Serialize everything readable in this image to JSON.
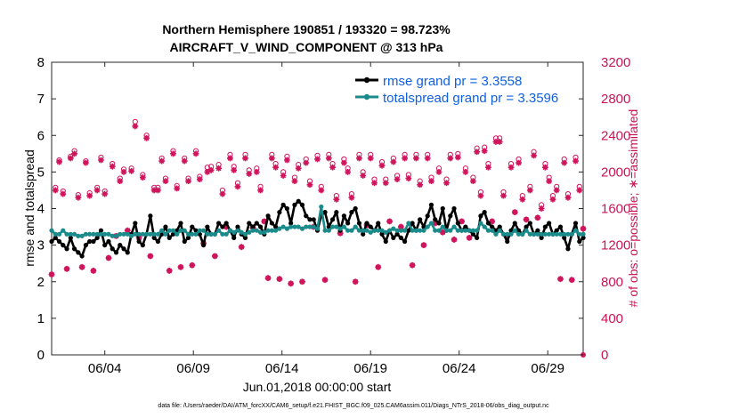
{
  "chart_data": {
    "type": "line",
    "title_line1": "Northern Hemisphere 190851 / 193320 = 98.723%",
    "title_line2": "AIRCRAFT_V_WIND_COMPONENT @ 313 hPa",
    "xlabel": "Jun.01,2018 00:00:00 start",
    "ylabel_left": "rmse and totalspread",
    "ylabel_right": "# of obs: o=possible; ∗=assimilated",
    "x_range": [
      1,
      31
    ],
    "x_ticks": [
      4,
      9,
      14,
      19,
      24,
      29
    ],
    "x_tick_labels": [
      "06/04",
      "06/09",
      "06/14",
      "06/19",
      "06/24",
      "06/29"
    ],
    "y_left_range": [
      0,
      8
    ],
    "y_left_ticks": [
      "0",
      "1",
      "2",
      "3",
      "4",
      "5",
      "6",
      "7",
      "8"
    ],
    "y_right_range": [
      0,
      3200
    ],
    "y_right_ticks": [
      "0",
      "400",
      "800",
      "1200",
      "1600",
      "2000",
      "2400",
      "2800",
      "3200"
    ],
    "grid": false,
    "legend_position": "top-right",
    "series": [
      {
        "name": "rmse grand pr = 3.3558",
        "color": "#000000",
        "axis": "left",
        "values": [
          3.1,
          3.2,
          3.1,
          3.0,
          2.9,
          3.2,
          2.9,
          2.8,
          2.7,
          3.0,
          3.1,
          3.1,
          3.2,
          3.4,
          3.0,
          3.1,
          2.9,
          2.8,
          3.0,
          2.9,
          2.8,
          3.3,
          3.6,
          3.1,
          3.0,
          3.3,
          3.8,
          3.2,
          3.1,
          3.3,
          3.5,
          3.2,
          3.3,
          3.4,
          3.6,
          3.1,
          3.2,
          3.5,
          3.4,
          3.3,
          3.0,
          3.5,
          3.3,
          3.3,
          3.6,
          3.5,
          3.6,
          3.4,
          3.2,
          3.5,
          3.3,
          3.2,
          3.6,
          3.5,
          3.6,
          3.5,
          3.3,
          3.8,
          3.6,
          3.5,
          3.9,
          4.1,
          4.0,
          3.6,
          4.1,
          4.2,
          4.1,
          3.8,
          3.7,
          3.7,
          3.4,
          3.8,
          3.9,
          3.5,
          3.7,
          3.9,
          3.4,
          3.8,
          3.6,
          3.9,
          4.0,
          3.6,
          3.3,
          3.6,
          3.5,
          3.4,
          3.6,
          3.3,
          3.1,
          3.4,
          3.2,
          3.3,
          3.2,
          3.1,
          3.4,
          3.6,
          3.4,
          3.7,
          3.5,
          3.8,
          4.1,
          3.7,
          3.6,
          4.0,
          3.4,
          3.8,
          4.0,
          3.6,
          3.4,
          3.5,
          3.4,
          3.3,
          3.2,
          3.8,
          3.9,
          3.6,
          3.5,
          3.4,
          3.5,
          3.3,
          3.1,
          3.4,
          3.6,
          3.4,
          3.3,
          3.5,
          3.6,
          3.3,
          3.4,
          3.2,
          3.5,
          3.6,
          3.3,
          3.4,
          3.5,
          3.2,
          2.9,
          3.3,
          3.6,
          3.1,
          3.2
        ]
      },
      {
        "name": "totalspread grand pr = 3.3596",
        "color": "#1a8a8a",
        "axis": "left",
        "values": [
          3.4,
          3.3,
          3.3,
          3.4,
          3.3,
          3.3,
          3.3,
          3.25,
          3.25,
          3.3,
          3.3,
          3.3,
          3.3,
          3.3,
          3.3,
          3.3,
          3.25,
          3.25,
          3.3,
          3.3,
          3.3,
          3.25,
          3.3,
          3.3,
          3.3,
          3.3,
          3.3,
          3.3,
          3.3,
          3.4,
          3.3,
          3.4,
          3.4,
          3.3,
          3.4,
          3.4,
          3.3,
          3.3,
          3.3,
          3.4,
          3.4,
          3.3,
          3.3,
          3.3,
          3.4,
          3.3,
          3.3,
          3.4,
          3.35,
          3.4,
          3.35,
          3.3,
          3.35,
          3.4,
          3.4,
          3.35,
          3.35,
          3.4,
          3.4,
          3.4,
          3.45,
          3.5,
          3.45,
          3.5,
          3.5,
          3.5,
          3.45,
          3.5,
          3.5,
          3.5,
          3.45,
          4.05,
          3.4,
          3.4,
          3.5,
          3.5,
          3.45,
          3.5,
          3.4,
          3.4,
          3.5,
          3.4,
          3.4,
          3.4,
          3.35,
          3.4,
          3.4,
          3.4,
          3.35,
          3.4,
          3.45,
          3.4,
          3.4,
          3.4,
          3.6,
          3.4,
          3.4,
          3.4,
          3.4,
          3.5,
          3.6,
          3.4,
          3.4,
          3.5,
          3.4,
          3.4,
          3.5,
          3.4,
          3.4,
          3.4,
          3.4,
          3.4,
          3.4,
          3.6,
          3.5,
          3.4,
          3.4,
          3.3,
          3.4,
          3.3,
          3.3,
          3.3,
          3.4,
          3.3,
          3.3,
          3.4,
          3.3,
          3.3,
          3.3,
          3.3,
          3.3,
          3.3,
          3.3,
          3.3,
          3.3,
          3.3,
          3.3,
          3.3,
          3.4,
          3.3,
          3.3
        ]
      },
      {
        "name": "# of obs assimilated",
        "color": "#d0145c",
        "axis": "right",
        "values": [
          880,
          1800,
          2110,
          1760,
          940,
          2150,
          2200,
          1720,
          960,
          2100,
          1740,
          920,
          1800,
          2130,
          1760,
          1060,
          2060,
          1300,
          1900,
          2000,
          1360,
          2010,
          2500,
          1280,
          1940,
          2370,
          1080,
          1800,
          1800,
          2120,
          1900,
          920,
          2200,
          1820,
          960,
          2120,
          1900,
          980,
          2200,
          1920,
          1220,
          2000,
          2020,
          1080,
          2040,
          1760,
          1400,
          2150,
          2020,
          1840,
          1180,
          2150,
          1980,
          1390,
          2000,
          1800,
          1460,
          840,
          2150,
          2050,
          830,
          1960,
          2130,
          780,
          1900,
          2040,
          800,
          2100,
          1860,
          1400,
          2140,
          1800,
          820,
          2150,
          2050,
          1700,
          1330,
          2100,
          2000,
          1720,
          800,
          2150,
          1960,
          1420,
          2150,
          1880,
          960,
          2070,
          1880,
          1460,
          2110,
          1920,
          1400,
          2150,
          1930,
          980,
          2150,
          1860,
          1200,
          2150,
          1900,
          1440,
          2000,
          1340,
          1880,
          2150,
          1260,
          2160,
          1460,
          2000,
          1280,
          1900,
          2220,
          1740,
          2230,
          2050,
          1460,
          2330,
          2330,
          1740,
          1300,
          2050,
          1560,
          2100,
          1700,
          1480,
          1800,
          2180,
          1500,
          1600,
          2050,
          1900,
          1700,
          1800,
          830,
          2100,
          1720,
          820,
          2120,
          1800,
          1380
        ]
      },
      {
        "name": "# of obs possible",
        "color": "#d0145c",
        "axis": "right",
        "values": [
          880,
          1830,
          2130,
          1790,
          940,
          2170,
          2230,
          1750,
          960,
          2120,
          1770,
          920,
          1830,
          2160,
          1790,
          1060,
          2090,
          1300,
          1930,
          2030,
          1360,
          2040,
          2550,
          1280,
          1970,
          2400,
          1080,
          1830,
          1830,
          2150,
          1930,
          920,
          2230,
          1850,
          960,
          2150,
          1930,
          980,
          2230,
          1950,
          1220,
          2050,
          2060,
          1080,
          2080,
          1800,
          1400,
          2190,
          2060,
          1880,
          1180,
          2190,
          2020,
          1390,
          2040,
          1840,
          1460,
          840,
          2190,
          2090,
          830,
          2000,
          2170,
          780,
          1940,
          2080,
          800,
          2140,
          1900,
          1400,
          2180,
          1840,
          820,
          2190,
          2090,
          1740,
          1330,
          2140,
          2040,
          1760,
          800,
          2190,
          2000,
          1420,
          2190,
          1920,
          960,
          2110,
          1920,
          1460,
          2150,
          1960,
          1400,
          2190,
          1970,
          980,
          2190,
          1900,
          1200,
          2190,
          1940,
          1440,
          2040,
          1340,
          1920,
          2190,
          1260,
          2200,
          1460,
          2040,
          1280,
          1940,
          2260,
          1780,
          2270,
          2090,
          1460,
          2370,
          2370,
          1780,
          1300,
          2090,
          1560,
          2140,
          1740,
          1480,
          1840,
          2220,
          1500,
          1640,
          2090,
          1940,
          1740,
          1840,
          830,
          2140,
          1760,
          820,
          2160,
          1840,
          1380
        ]
      }
    ],
    "x_start": 1.0,
    "x_step": 0.2143,
    "trailing_zero_point": [
      31,
      0
    ],
    "footer": "data file: /Users/raeder/DAI/ATM_forcXX/CAM6_setup/f.e21.FHIST_BGC.f09_025.CAM6assim.011/Diags_NTrS_2018-06/obs_diag_output.nc"
  }
}
